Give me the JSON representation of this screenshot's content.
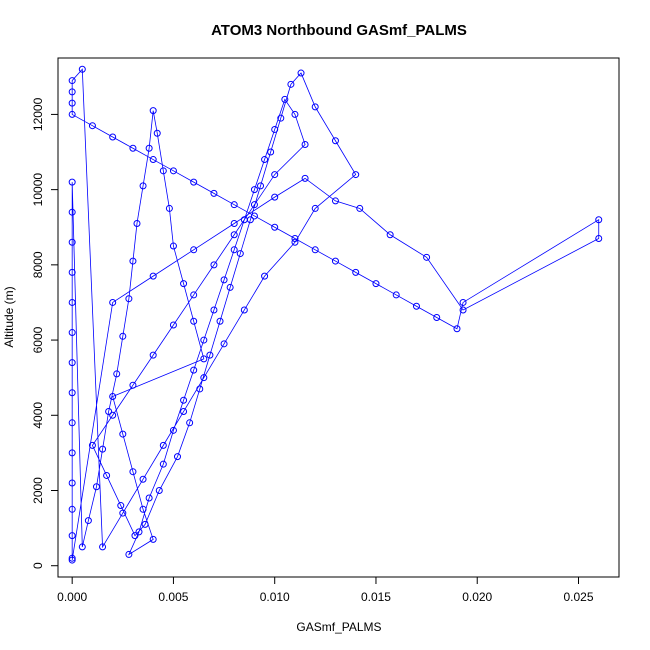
{
  "chart_data": {
    "type": "scatter",
    "title": "ATOM3 Northbound GASmf_PALMS",
    "xlabel": "GASmf_PALMS",
    "ylabel": "Altitude (m)",
    "xlim": [
      -0.0007,
      0.027
    ],
    "ylim": [
      -300,
      13500
    ],
    "x_ticks": [
      0.0,
      0.005,
      0.01,
      0.015,
      0.02,
      0.025
    ],
    "x_tick_labels": [
      "0.000",
      "0.005",
      "0.010",
      "0.015",
      "0.020",
      "0.025"
    ],
    "y_ticks": [
      0,
      2000,
      4000,
      6000,
      8000,
      10000,
      12000
    ],
    "y_tick_labels": [
      "0",
      "2000",
      "4000",
      "6000",
      "8000",
      "10000",
      "12000"
    ],
    "grid": false,
    "legend": "none",
    "marker": "open-circle",
    "connected_by_lines": true,
    "color": "#0000ff",
    "series": [
      {
        "x": [
          0.0,
          0.0,
          0.0,
          0.0,
          0.0,
          0.0,
          0.0,
          0.0,
          0.0,
          0.0,
          0.0,
          0.0,
          0.0,
          0.0,
          0.0005,
          0.0008,
          0.0012,
          0.0015,
          0.0018,
          0.0022,
          0.0025,
          0.0028,
          0.003,
          0.0032,
          0.0035,
          0.0038,
          0.004,
          0.0042,
          0.0045,
          0.0048,
          0.005,
          0.0055,
          0.006,
          0.0065,
          0.002,
          0.0025,
          0.003,
          0.0035,
          0.004,
          0.0028,
          0.0033,
          0.0038,
          0.0045,
          0.005,
          0.0055,
          0.006,
          0.0065,
          0.007,
          0.0075,
          0.008,
          0.0085,
          0.009,
          0.0095,
          0.01,
          0.0105,
          0.011,
          0.0115,
          0.01,
          0.009,
          0.008,
          0.007,
          0.006,
          0.005,
          0.004,
          0.003,
          0.002,
          0.001,
          0.0017,
          0.0024,
          0.0031,
          0.0036,
          0.0043,
          0.0052,
          0.0058,
          0.0063,
          0.0068,
          0.0073,
          0.0078,
          0.0083,
          0.0088,
          0.0093,
          0.0098,
          0.0103,
          0.0108,
          0.0113,
          0.012,
          0.013,
          0.014,
          0.012,
          0.011,
          0.0095,
          0.0085,
          0.0075,
          0.0065,
          0.0055,
          0.0045,
          0.0035,
          0.0025,
          0.0015,
          0.0005,
          0.0,
          0.0,
          0.0,
          0.0,
          0.001,
          0.002,
          0.003,
          0.004,
          0.005,
          0.006,
          0.007,
          0.008,
          0.009,
          0.01,
          0.011,
          0.012,
          0.013,
          0.014,
          0.015,
          0.016,
          0.017,
          0.018,
          0.019,
          0.0193,
          0.026,
          0.026,
          0.0193,
          0.0175,
          0.0157,
          0.0142,
          0.013,
          0.0115,
          0.01,
          0.008,
          0.006,
          0.004,
          0.002,
          0.0
        ],
        "y": [
          200,
          800,
          1500,
          2200,
          3000,
          3800,
          4600,
          5400,
          6200,
          7000,
          7800,
          8600,
          9400,
          10200,
          500,
          1200,
          2100,
          3100,
          4100,
          5100,
          6100,
          7100,
          8100,
          9100,
          10100,
          11100,
          12100,
          11500,
          10500,
          9500,
          8500,
          7500,
          6500,
          5500,
          4500,
          3500,
          2500,
          1500,
          700,
          300,
          900,
          1800,
          2700,
          3600,
          4400,
          5200,
          6000,
          6800,
          7600,
          8400,
          9200,
          10000,
          10800,
          11600,
          12400,
          12000,
          11200,
          10400,
          9600,
          8800,
          8000,
          7200,
          6400,
          5600,
          4800,
          4000,
          3200,
          2400,
          1600,
          800,
          1100,
          2000,
          2900,
          3800,
          4700,
          5600,
          6500,
          7400,
          8300,
          9200,
          10100,
          11000,
          11900,
          12800,
          13100,
          12200,
          11300,
          10400,
          9500,
          8600,
          7700,
          6800,
          5900,
          5000,
          4100,
          3200,
          2300,
          1400,
          500,
          13200,
          12900,
          12600,
          12300,
          12000,
          11700,
          11400,
          11100,
          10800,
          10500,
          10200,
          9900,
          9600,
          9300,
          9000,
          8700,
          8400,
          8100,
          7800,
          7500,
          7200,
          6900,
          6600,
          6300,
          7000,
          9200,
          8700,
          6800,
          8200,
          8800,
          9500,
          9700,
          10300,
          9800,
          9100,
          8400,
          7700,
          7000,
          150
        ]
      }
    ]
  }
}
